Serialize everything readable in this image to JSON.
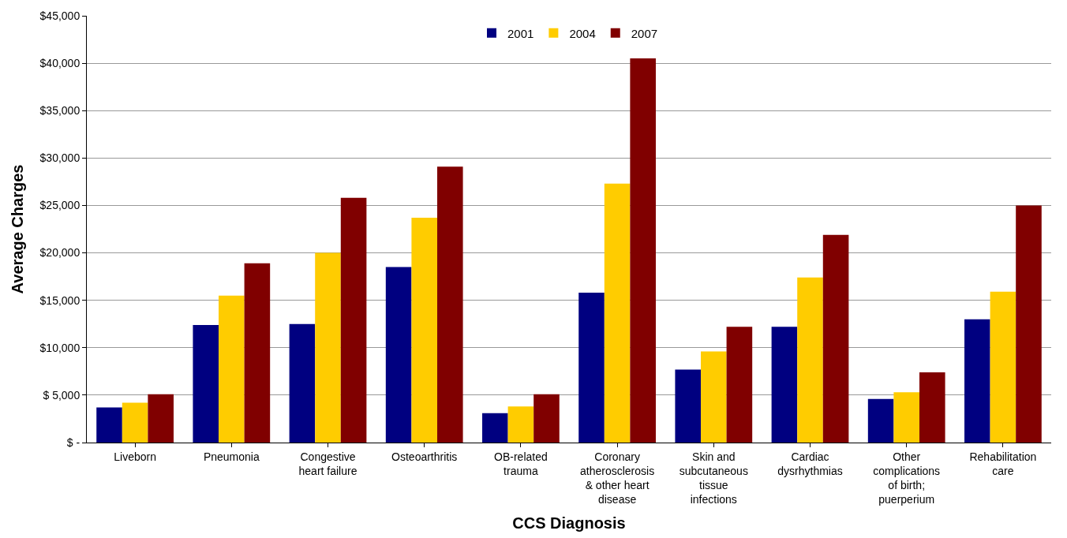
{
  "chart_data": {
    "type": "bar",
    "xlabel": "CCS Diagnosis",
    "ylabel": "Average Charges",
    "categories": [
      "Liveborn",
      "Pneumonia",
      "Congestive heart failure",
      "Osteoarthritis",
      "OB-related trauma",
      "Coronary atherosclerosis & other heart disease",
      "Skin and subcutaneous tissue infections",
      "Cardiac dysrhythmias",
      "Other complications of birth; puerperium",
      "Rehabilitation care"
    ],
    "series": [
      {
        "name": "2001",
        "color": "#000080",
        "values": [
          3700,
          12400,
          12500,
          18500,
          3100,
          15800,
          7700,
          12200,
          4600,
          13000
        ]
      },
      {
        "name": "2004",
        "color": "#ffcc00",
        "values": [
          4200,
          15500,
          20000,
          23700,
          3800,
          27300,
          9600,
          17400,
          5300,
          15900
        ]
      },
      {
        "name": "2007",
        "color": "#800000",
        "values": [
          5100,
          18900,
          25800,
          29100,
          5100,
          40500,
          12200,
          21900,
          7400,
          25000
        ]
      }
    ],
    "ylim": [
      0,
      45000
    ],
    "yticks": [
      {
        "value": 0,
        "label": "$ -"
      },
      {
        "value": 5000,
        "label": "$ 5,000"
      },
      {
        "value": 10000,
        "label": "$10,000"
      },
      {
        "value": 15000,
        "label": "$15,000"
      },
      {
        "value": 20000,
        "label": "$20,000"
      },
      {
        "value": 25000,
        "label": "$25,000"
      },
      {
        "value": 30000,
        "label": "$30,000"
      },
      {
        "value": 35000,
        "label": "$35,000"
      },
      {
        "value": 40000,
        "label": "$40,000"
      },
      {
        "value": 45000,
        "label": "$45,000"
      }
    ],
    "grid": "y",
    "legend": "top"
  }
}
